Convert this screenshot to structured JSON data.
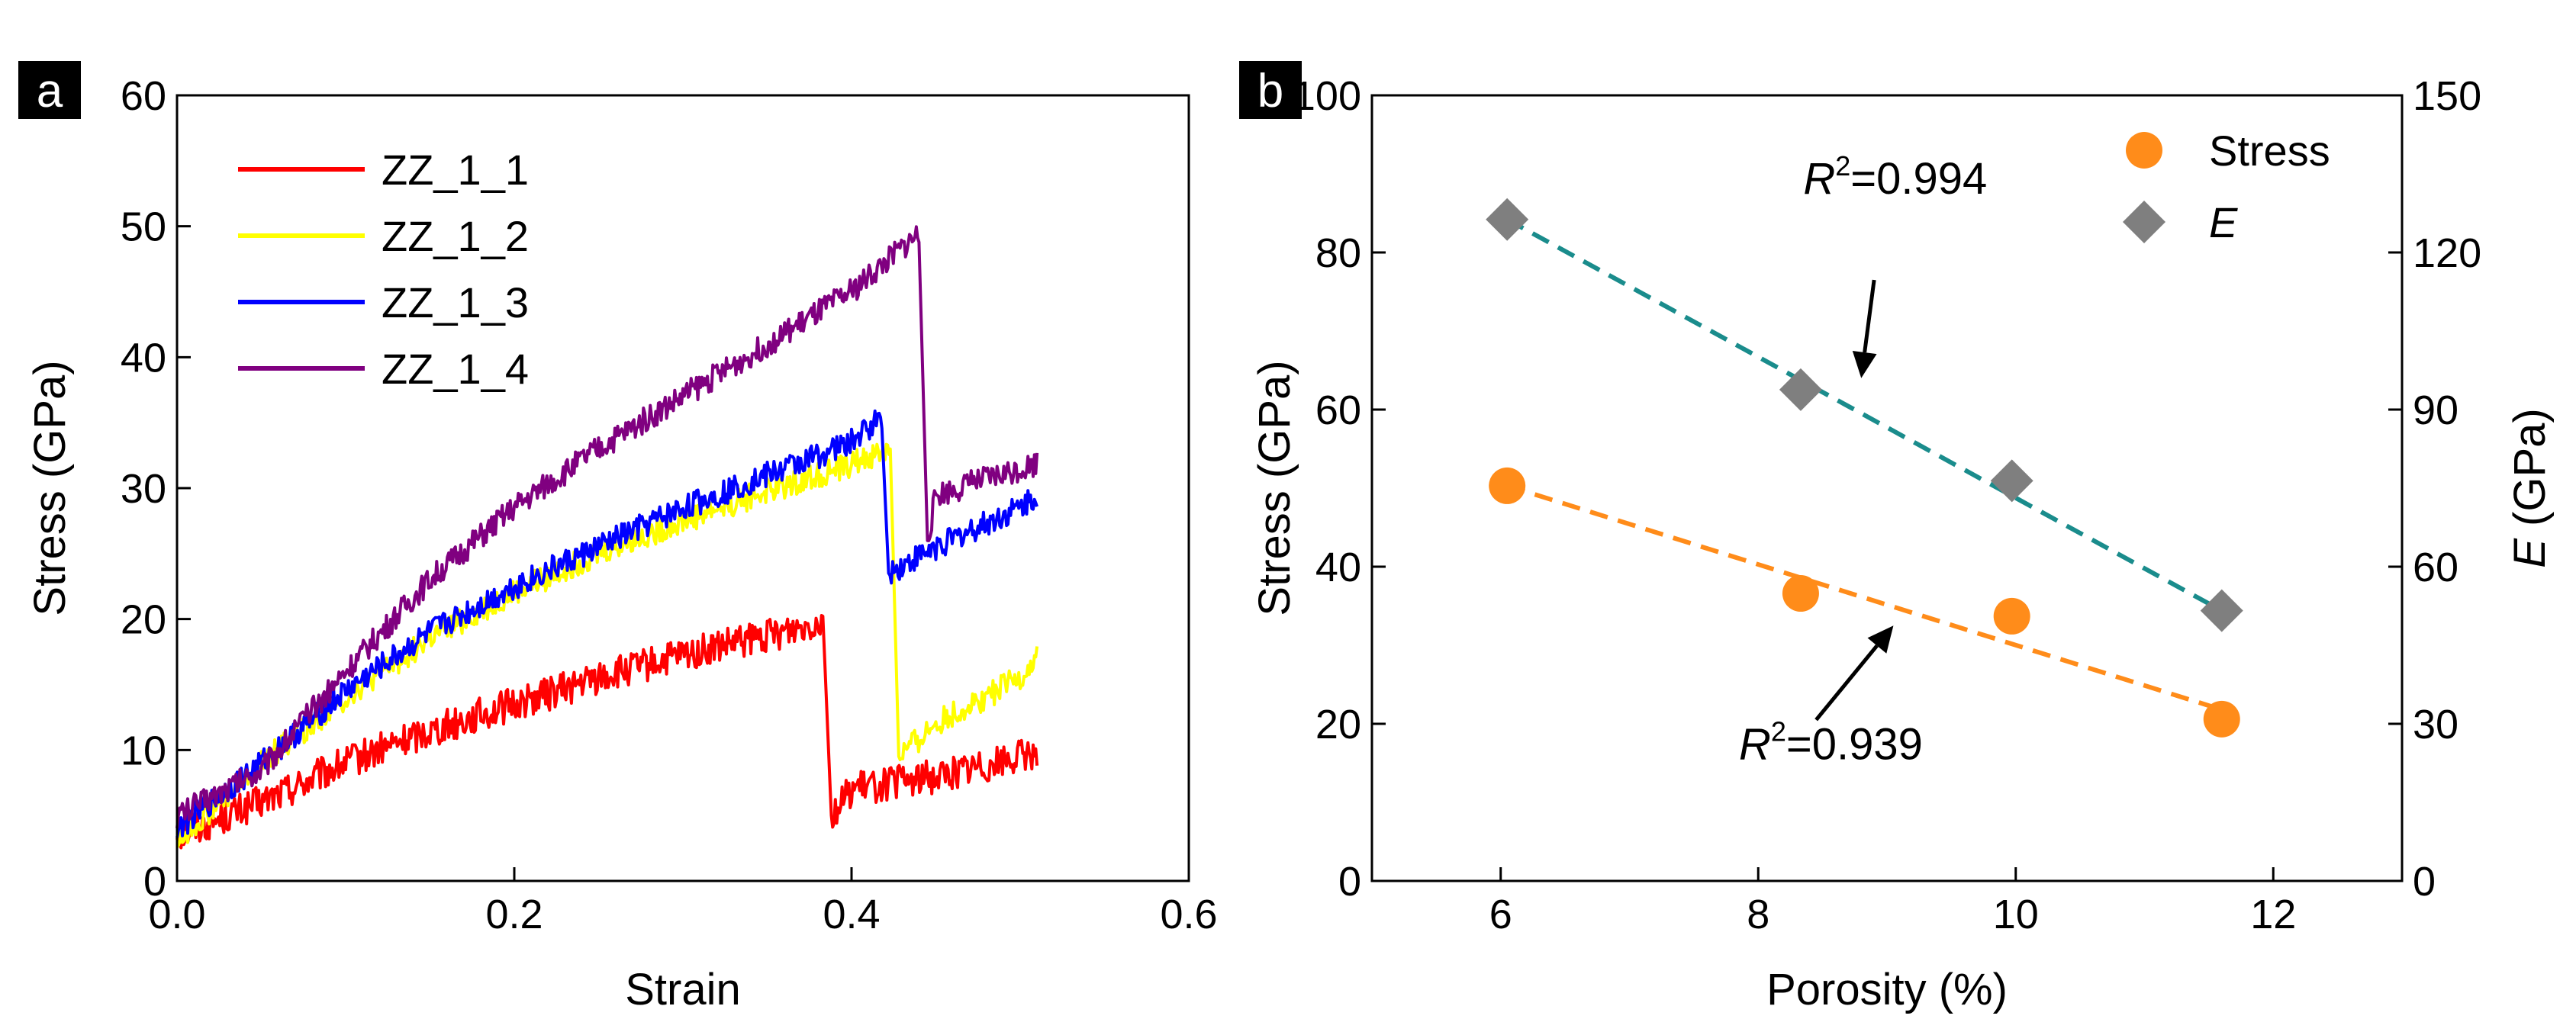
{
  "chart_data": [
    {
      "panel": "a",
      "type": "line",
      "xlabel": "Strain",
      "ylabel": "Stress (GPa)",
      "xlim": [
        0.0,
        0.6
      ],
      "ylim": [
        0,
        60
      ],
      "xticks": [
        "0.0",
        "0.2",
        "0.4",
        "0.6"
      ],
      "xtick_values": [
        0.0,
        0.2,
        0.4,
        0.6
      ],
      "yticks": [
        "0",
        "10",
        "20",
        "30",
        "40",
        "50",
        "60"
      ],
      "ytick_values": [
        0,
        10,
        20,
        30,
        40,
        50,
        60
      ],
      "legend_position": "top-left",
      "series": [
        {
          "name": "ZZ_1_1",
          "color": "#ff0000",
          "noise": 1.3,
          "points": [
            [
              0.0,
              3.5
            ],
            [
              0.05,
              6.0
            ],
            [
              0.1,
              9.0
            ],
            [
              0.15,
              11.5
            ],
            [
              0.2,
              13.5
            ],
            [
              0.25,
              15.5
            ],
            [
              0.3,
              17.2
            ],
            [
              0.35,
              18.7
            ],
            [
              0.383,
              20.0
            ],
            [
              0.388,
              5.0
            ],
            [
              0.4,
              7.0
            ],
            [
              0.45,
              8.0
            ],
            [
              0.5,
              9.5
            ],
            [
              0.51,
              10.0
            ]
          ]
        },
        {
          "name": "ZZ_1_2",
          "color": "#ffff00",
          "noise": 1.0,
          "points": [
            [
              0.0,
              3.0
            ],
            [
              0.05,
              9.0
            ],
            [
              0.1,
              14.0
            ],
            [
              0.15,
              18.5
            ],
            [
              0.2,
              22.0
            ],
            [
              0.25,
              25.0
            ],
            [
              0.3,
              27.5
            ],
            [
              0.35,
              29.8
            ],
            [
              0.4,
              31.8
            ],
            [
              0.423,
              33.0
            ],
            [
              0.428,
              9.5
            ],
            [
              0.45,
              12.0
            ],
            [
              0.5,
              15.5
            ],
            [
              0.51,
              17.0
            ]
          ]
        },
        {
          "name": "ZZ_1_3",
          "color": "#0000ff",
          "noise": 1.0,
          "points": [
            [
              0.0,
              4.0
            ],
            [
              0.05,
              9.0
            ],
            [
              0.1,
              14.5
            ],
            [
              0.15,
              19.0
            ],
            [
              0.2,
              22.5
            ],
            [
              0.25,
              25.5
            ],
            [
              0.3,
              28.5
            ],
            [
              0.35,
              31.0
            ],
            [
              0.4,
              33.5
            ],
            [
              0.418,
              35.5
            ],
            [
              0.422,
              23.5
            ],
            [
              0.45,
              25.5
            ],
            [
              0.5,
              28.5
            ],
            [
              0.51,
              29.5
            ]
          ]
        },
        {
          "name": "ZZ_1_4",
          "color": "#800080",
          "noise": 1.0,
          "points": [
            [
              0.0,
              5.0
            ],
            [
              0.05,
              8.5
            ],
            [
              0.1,
              16.0
            ],
            [
              0.15,
              23.0
            ],
            [
              0.2,
              28.5
            ],
            [
              0.25,
              33.0
            ],
            [
              0.3,
              37.0
            ],
            [
              0.35,
              41.0
            ],
            [
              0.4,
              45.0
            ],
            [
              0.44,
              49.5
            ],
            [
              0.445,
              26.0
            ],
            [
              0.45,
              29.5
            ],
            [
              0.5,
              31.5
            ],
            [
              0.51,
              32.0
            ]
          ]
        }
      ]
    },
    {
      "panel": "b",
      "type": "scatter",
      "xlabel": "Porosity (%)",
      "ylabel": "Stress (GPa)",
      "ylabel2_symbol": "E",
      "ylabel2_unit": " (GPa)",
      "xlim": [
        5,
        13
      ],
      "ylim": [
        0,
        100
      ],
      "y2lim": [
        0,
        150
      ],
      "xticks": [
        "6",
        "8",
        "10",
        "12"
      ],
      "xtick_values": [
        6,
        8,
        10,
        12
      ],
      "yticks": [
        "0",
        "20",
        "40",
        "60",
        "80",
        "100"
      ],
      "ytick_values": [
        0,
        20,
        40,
        60,
        80,
        100
      ],
      "y2ticks": [
        "0",
        "30",
        "60",
        "90",
        "120",
        "150"
      ],
      "y2tick_values": [
        0,
        30,
        60,
        90,
        120,
        150
      ],
      "legend_position": "top-right",
      "series": [
        {
          "name": "Stress",
          "italic": false,
          "marker": "circle",
          "color": "#ff8c1a",
          "axis": "left",
          "x": [
            6.05,
            8.33,
            9.97,
            11.6
          ],
          "y": [
            50.3,
            36.6,
            33.7,
            20.6
          ],
          "fit": {
            "x": [
              6.05,
              11.6
            ],
            "y": [
              50.3,
              21.8
            ],
            "color": "#ff8c1a"
          },
          "r2": "0.939"
        },
        {
          "name": "E",
          "italic": true,
          "marker": "diamond",
          "color": "#7f7f7f",
          "axis": "right",
          "x": [
            6.05,
            8.33,
            9.97,
            11.6
          ],
          "y": [
            126.3,
            93.8,
            76.4,
            51.6
          ],
          "fit": {
            "x": [
              6.05,
              11.6
            ],
            "y": [
              126.3,
              51.6
            ],
            "color": "#1a8c8c"
          },
          "r2": "0.994"
        }
      ],
      "annotations": [
        {
          "symbol": "R",
          "sup": "2",
          "text": "=0.994",
          "anchor_x": 8.35,
          "anchor_y": 87.5,
          "target_x": 8.75,
          "target_y": 62.5,
          "tip_x": 8.8,
          "tip_y": 64.0
        },
        {
          "symbol": "R",
          "sup": "2",
          "text": "=0.939",
          "anchor_x": 7.85,
          "anchor_y": 15.5,
          "target_x": 8.85,
          "target_y": 26.5,
          "tip_x": 9.05,
          "tip_y": 32.5
        }
      ]
    }
  ]
}
